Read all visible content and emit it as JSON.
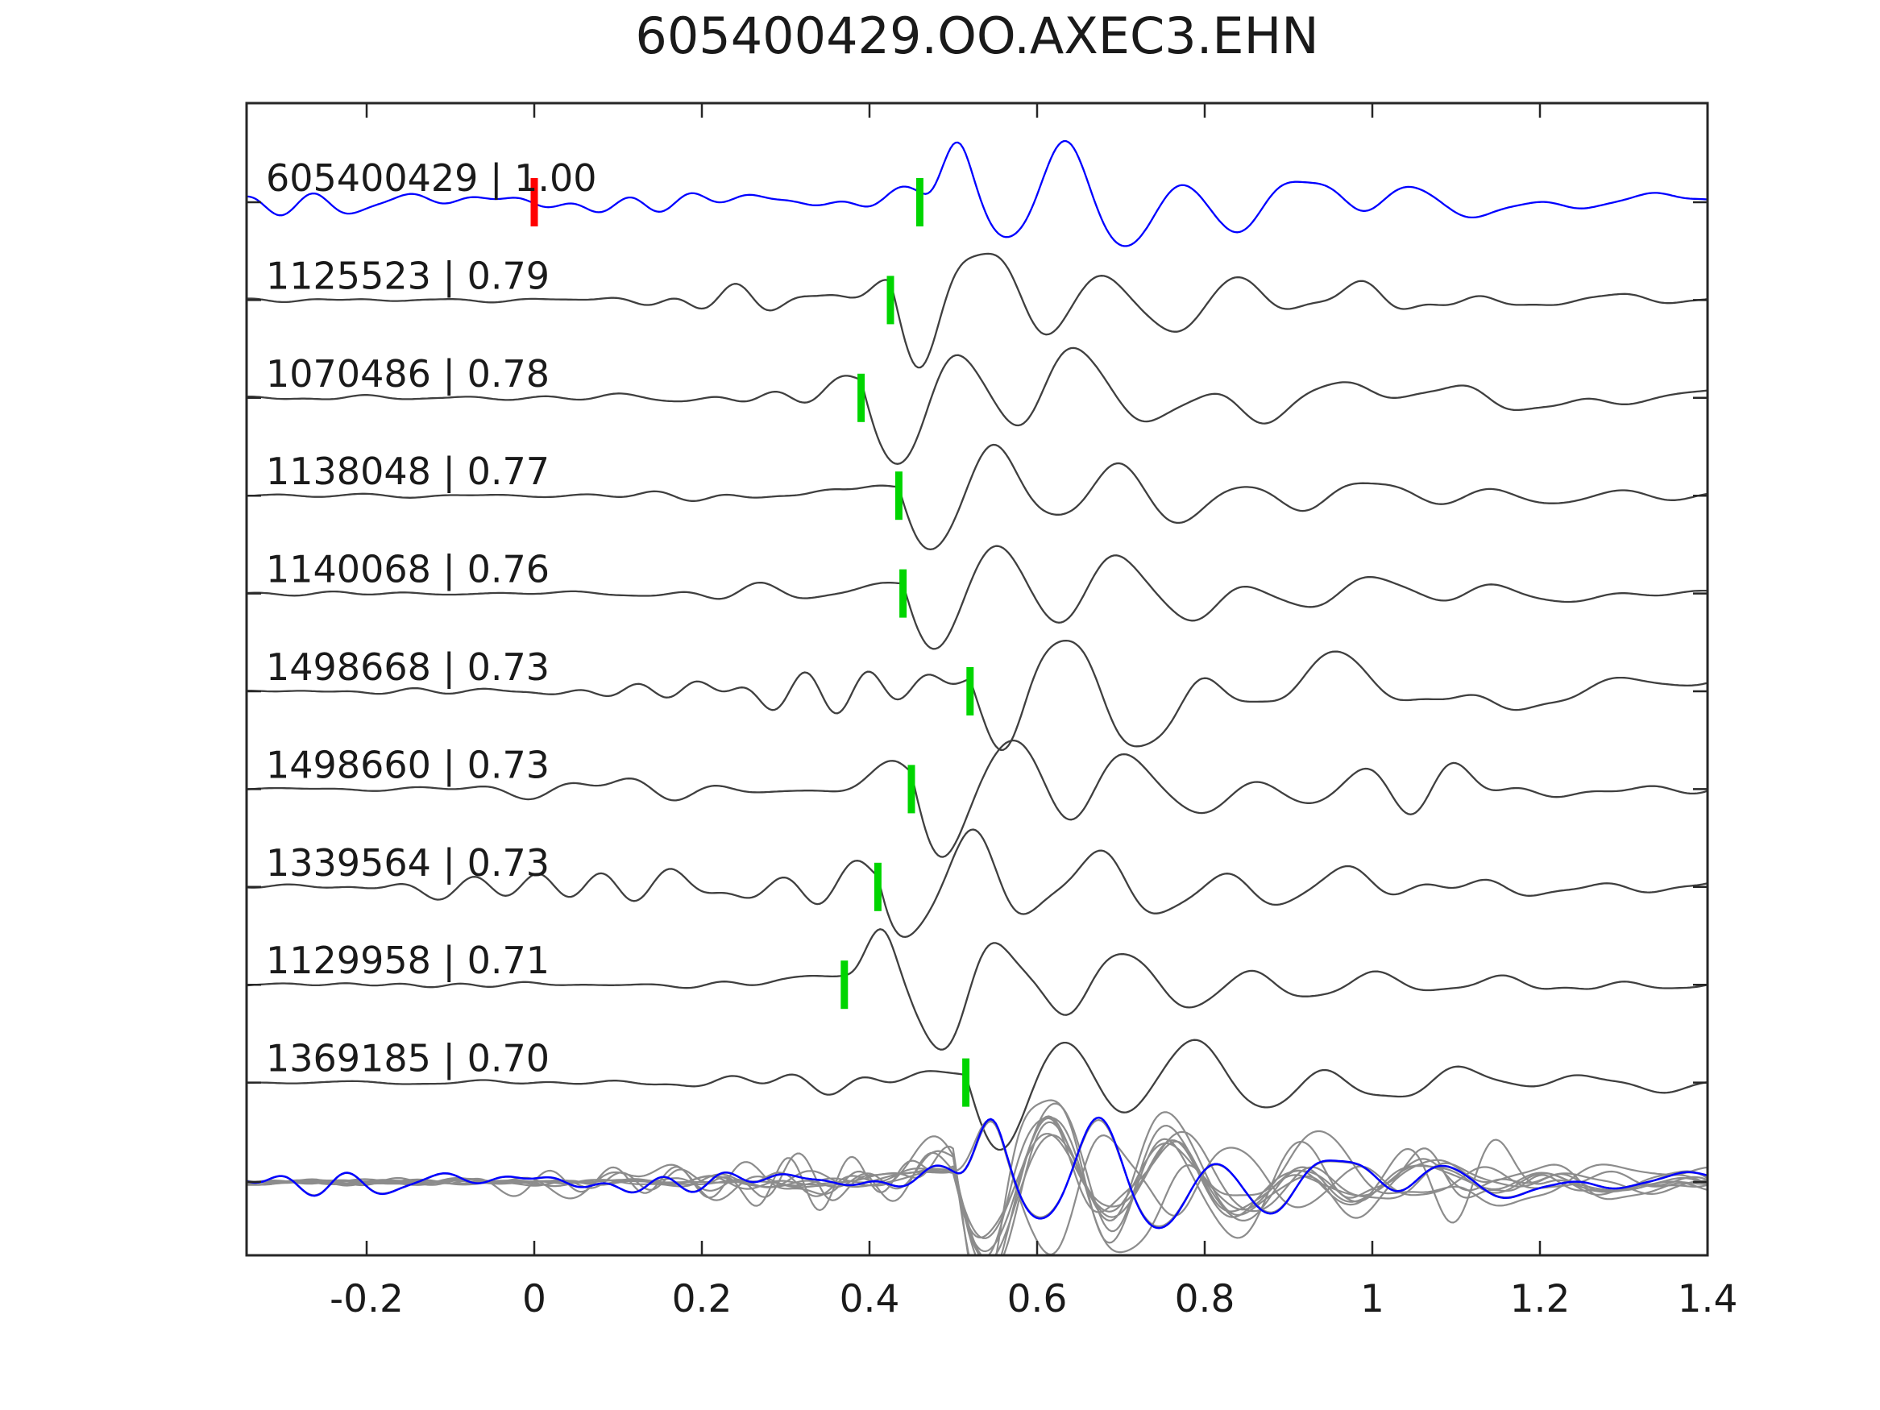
{
  "title": "605400429.OO.AXEC3.EHN",
  "figure_type": "seismic-waveform-correlation-panel",
  "colors": {
    "reference_trace": "#0000ff",
    "trace": "#3f3f3f",
    "stack_trace": "#8c8c8c",
    "stack_reference": "#0000ff",
    "pick_marker": "#00d500",
    "reference_pick_marker": "#ff0000",
    "axis": "#262626",
    "text": "#1a1a1a"
  },
  "chart_data": {
    "type": "line",
    "title": "605400429.OO.AXEC3.EHN",
    "xlabel": "",
    "ylabel": "",
    "grid": false,
    "x_axis": {
      "min": -0.34,
      "max": 1.4,
      "ticks": [
        -0.2,
        0,
        0.2,
        0.4,
        0.6,
        0.8,
        1,
        1.2,
        1.4
      ],
      "tick_labels": [
        "-0.2",
        "0",
        "0.2",
        "0.4",
        "0.6",
        "0.8",
        "1",
        "1.2",
        "1.4"
      ]
    },
    "reference_pick": {
      "event_id": "605400429",
      "time": 0.0
    },
    "traces": [
      {
        "event_id": "605400429",
        "correlation": 1.0,
        "label": "605400429 | 1.00",
        "pick_time": 0.46,
        "is_reference": true
      },
      {
        "event_id": "1125523",
        "correlation": 0.79,
        "label": "1125523 | 0.79",
        "pick_time": 0.425,
        "is_reference": false
      },
      {
        "event_id": "1070486",
        "correlation": 0.78,
        "label": "1070486 | 0.78",
        "pick_time": 0.39,
        "is_reference": false
      },
      {
        "event_id": "1138048",
        "correlation": 0.77,
        "label": "1138048 | 0.77",
        "pick_time": 0.435,
        "is_reference": false
      },
      {
        "event_id": "1140068",
        "correlation": 0.76,
        "label": "1140068 | 0.76",
        "pick_time": 0.44,
        "is_reference": false
      },
      {
        "event_id": "1498668",
        "correlation": 0.73,
        "label": "1498668 | 0.73",
        "pick_time": 0.52,
        "is_reference": false
      },
      {
        "event_id": "1498660",
        "correlation": 0.73,
        "label": "1498660 | 0.73",
        "pick_time": 0.45,
        "is_reference": false
      },
      {
        "event_id": "1339564",
        "correlation": 0.73,
        "label": "1339564 | 0.73",
        "pick_time": 0.41,
        "is_reference": false
      },
      {
        "event_id": "1129958",
        "correlation": 0.71,
        "label": "1129958 | 0.71",
        "pick_time": 0.37,
        "is_reference": false
      },
      {
        "event_id": "1369185",
        "correlation": 0.7,
        "label": "1369185 | 0.70",
        "pick_time": 0.515,
        "is_reference": false
      }
    ],
    "stack_row": {
      "description": "all traces overlaid, aligned on their picks",
      "alignment_time": 0.5
    }
  }
}
